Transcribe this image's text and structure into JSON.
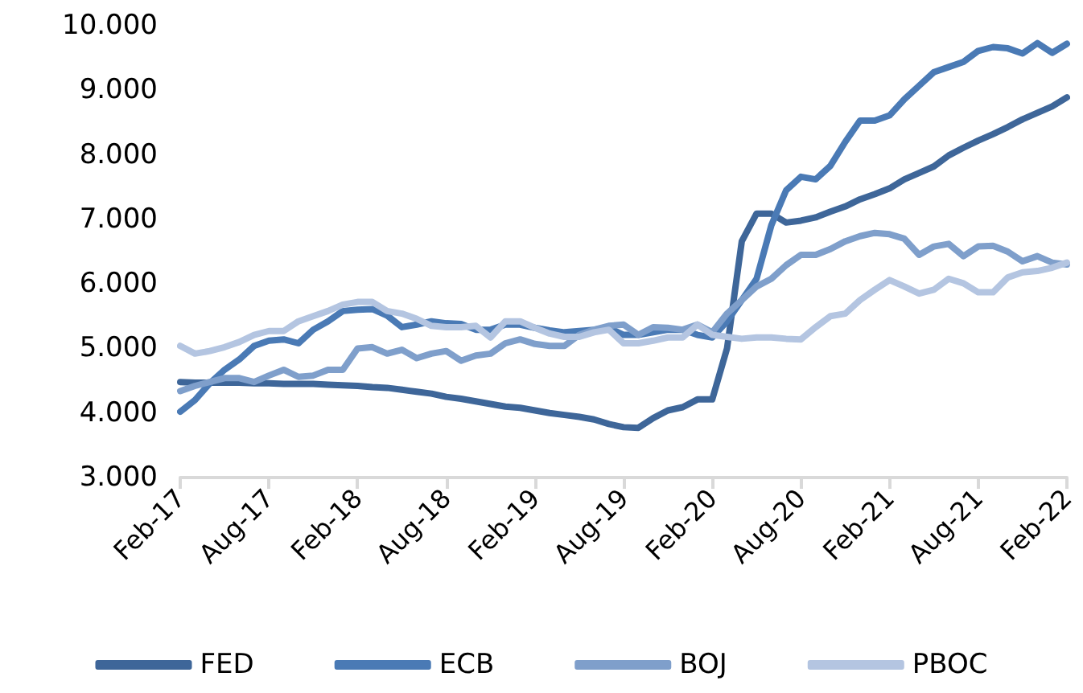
{
  "chart_data": {
    "type": "line",
    "categories": [
      "Feb-17",
      null,
      null,
      null,
      null,
      null,
      "Aug-17",
      null,
      null,
      null,
      null,
      null,
      "Feb-18",
      null,
      null,
      null,
      null,
      null,
      "Aug-18",
      null,
      null,
      null,
      null,
      null,
      "Feb-19",
      null,
      null,
      null,
      null,
      null,
      "Aug-19",
      null,
      null,
      null,
      null,
      null,
      "Feb-20",
      null,
      null,
      null,
      null,
      null,
      "Aug-20",
      null,
      null,
      null,
      null,
      null,
      "Feb-21",
      null,
      null,
      null,
      null,
      null,
      "Aug-21",
      null,
      null,
      null,
      null,
      null,
      "Feb-22"
    ],
    "series": [
      {
        "name": "FED",
        "color": "#3e6699",
        "values": [
          4.48,
          4.47,
          4.47,
          4.47,
          4.47,
          4.46,
          4.46,
          4.45,
          4.45,
          4.45,
          4.44,
          4.43,
          4.42,
          4.4,
          4.39,
          4.36,
          4.33,
          4.3,
          4.25,
          4.22,
          4.18,
          4.14,
          4.1,
          4.08,
          4.04,
          4.0,
          3.97,
          3.94,
          3.9,
          3.83,
          3.78,
          3.77,
          3.92,
          4.04,
          4.09,
          4.21,
          4.21,
          5.0,
          6.66,
          7.09,
          7.09,
          6.95,
          6.98,
          7.03,
          7.12,
          7.2,
          7.31,
          7.39,
          7.48,
          7.62,
          7.72,
          7.82,
          7.99,
          8.11,
          8.22,
          8.32,
          8.43,
          8.55,
          8.65,
          8.75,
          8.89
        ]
      },
      {
        "name": "ECB",
        "color": "#4a7ab5",
        "values": [
          4.02,
          4.2,
          4.46,
          4.67,
          4.83,
          5.04,
          5.12,
          5.14,
          5.08,
          5.29,
          5.42,
          5.58,
          5.6,
          5.61,
          5.51,
          5.33,
          5.37,
          5.42,
          5.39,
          5.38,
          5.29,
          5.29,
          5.37,
          5.37,
          5.32,
          5.28,
          5.25,
          5.27,
          5.29,
          5.32,
          5.21,
          5.21,
          5.25,
          5.29,
          5.29,
          5.21,
          5.17,
          5.42,
          5.75,
          6.08,
          6.91,
          7.45,
          7.66,
          7.62,
          7.83,
          8.2,
          8.53,
          8.53,
          8.61,
          8.86,
          9.07,
          9.28,
          9.36,
          9.44,
          9.61,
          9.67,
          9.65,
          9.57,
          9.73,
          9.58,
          9.72
        ]
      },
      {
        "name": "BOJ",
        "color": "#7f9fcb",
        "values": [
          4.34,
          4.42,
          4.48,
          4.54,
          4.54,
          4.48,
          4.58,
          4.67,
          4.56,
          4.58,
          4.67,
          4.67,
          5.0,
          5.02,
          4.92,
          4.98,
          4.85,
          4.92,
          4.96,
          4.81,
          4.89,
          4.92,
          5.08,
          5.14,
          5.07,
          5.04,
          5.04,
          5.21,
          5.29,
          5.35,
          5.37,
          5.21,
          5.33,
          5.32,
          5.29,
          5.37,
          5.25,
          5.54,
          5.75,
          5.96,
          6.08,
          6.29,
          6.45,
          6.45,
          6.54,
          6.66,
          6.74,
          6.79,
          6.77,
          6.7,
          6.45,
          6.58,
          6.62,
          6.43,
          6.58,
          6.59,
          6.5,
          6.35,
          6.43,
          6.33,
          6.3
        ]
      },
      {
        "name": "PBOC",
        "color": "#b4c5e1",
        "values": [
          5.04,
          4.92,
          4.96,
          5.02,
          5.1,
          5.21,
          5.27,
          5.27,
          5.42,
          5.5,
          5.58,
          5.68,
          5.72,
          5.72,
          5.58,
          5.54,
          5.46,
          5.35,
          5.33,
          5.33,
          5.35,
          5.17,
          5.42,
          5.42,
          5.32,
          5.23,
          5.18,
          5.18,
          5.25,
          5.29,
          5.08,
          5.08,
          5.12,
          5.17,
          5.17,
          5.37,
          5.21,
          5.18,
          5.15,
          5.17,
          5.17,
          5.15,
          5.14,
          5.33,
          5.5,
          5.54,
          5.75,
          5.91,
          6.06,
          5.96,
          5.85,
          5.91,
          6.08,
          6.01,
          5.87,
          5.87,
          6.1,
          6.18,
          6.2,
          6.25,
          6.33
        ]
      }
    ],
    "ylim": [
      3,
      10
    ],
    "yticks": [
      {
        "value": 3,
        "label": "3.000"
      },
      {
        "value": 4,
        "label": "4.000"
      },
      {
        "value": 5,
        "label": "5.000"
      },
      {
        "value": 6,
        "label": "6.000"
      },
      {
        "value": 7,
        "label": "7.000"
      },
      {
        "value": 8,
        "label": "8.000"
      },
      {
        "value": 9,
        "label": "9.000"
      },
      {
        "value": 10,
        "label": "10.000"
      }
    ],
    "legend": "bottom",
    "marker": "none",
    "line_style": "solid",
    "grid": false
  }
}
